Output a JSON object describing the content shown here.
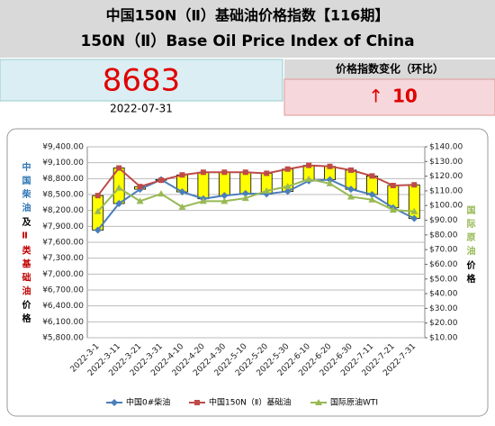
{
  "header": {
    "title": "中国150N（Ⅱ）基础油价格指数【116期】",
    "subtitle": "150N（Ⅱ）Base Oil Price Index of China"
  },
  "index": {
    "value": 8683,
    "date": "2022-07-31",
    "change_title": "价格指数变化（环比）",
    "change_arrow": "↑",
    "change": 10
  },
  "chart_data": {
    "type": "line",
    "categories": [
      "2022-3-1",
      "2022-3-11",
      "2022-3-21",
      "2022-3-31",
      "2022-4-10",
      "2022-4-20",
      "2022-4-30",
      "2022-5-10",
      "2022-5-20",
      "2022-5-30",
      "2022-6-10",
      "2022-6-20",
      "2022-6-30",
      "2022-7-11",
      "2022-7-21",
      "2022-7-31"
    ],
    "series": [
      {
        "name": "中国0#柴油",
        "color": "#4a7ebb",
        "marker": "diamond",
        "values": [
          7830,
          8330,
          8600,
          8780,
          8550,
          8420,
          8480,
          8520,
          8510,
          8560,
          8760,
          8780,
          8600,
          8500,
          8250,
          8050
        ]
      },
      {
        "name": "中国150N（Ⅱ）基础油",
        "color": "#be4b48",
        "marker": "square",
        "values": [
          8480,
          9000,
          8650,
          8770,
          8870,
          8920,
          8920,
          8920,
          8900,
          8980,
          9050,
          9030,
          8960,
          8850,
          8670,
          8683
        ]
      },
      {
        "name": "国际原油WTI",
        "color": "#98b954",
        "marker": "triangle",
        "axis": "y2",
        "values": [
          96,
          112,
          103,
          108,
          99,
          103,
          103,
          105,
          110,
          113,
          118,
          115,
          106,
          104,
          97,
          96
        ]
      }
    ],
    "updown_bar_color": "#ffff00",
    "ylim": [
      5800,
      9400
    ],
    "yticks": [
      {
        "value": 5800,
        "label": "¥5,800.00"
      },
      {
        "value": 6100,
        "label": "¥6,100.00"
      },
      {
        "value": 6400,
        "label": "¥6,400.00"
      },
      {
        "value": 6700,
        "label": "¥6,700.00"
      },
      {
        "value": 7000,
        "label": "¥7,000.00"
      },
      {
        "value": 7300,
        "label": "¥7,300.00"
      },
      {
        "value": 7600,
        "label": "¥7,600.00"
      },
      {
        "value": 7900,
        "label": "¥7,900.00"
      },
      {
        "value": 8200,
        "label": "¥8,200.00"
      },
      {
        "value": 8500,
        "label": "¥8,500.00"
      },
      {
        "value": 8800,
        "label": "¥8,800.00"
      },
      {
        "value": 9100,
        "label": "¥9,100.00"
      },
      {
        "value": 9400,
        "label": "¥9,400.00"
      }
    ],
    "y2lim": [
      10,
      140
    ],
    "y2ticks": [
      {
        "value": 10,
        "label": "$10.00"
      },
      {
        "value": 20,
        "label": "$20.00"
      },
      {
        "value": 30,
        "label": "$30.00"
      },
      {
        "value": 40,
        "label": "$40.00"
      },
      {
        "value": 50,
        "label": "$50.00"
      },
      {
        "value": 60,
        "label": "$60.00"
      },
      {
        "value": 70,
        "label": "$70.00"
      },
      {
        "value": 80,
        "label": "$80.00"
      },
      {
        "value": 90,
        "label": "$90.00"
      },
      {
        "value": 100,
        "label": "$100.00"
      },
      {
        "value": 110,
        "label": "$110.00"
      },
      {
        "value": 120,
        "label": "$120.00"
      },
      {
        "value": 130,
        "label": "$130.00"
      },
      {
        "value": 140,
        "label": "$140.00"
      }
    ],
    "grid": true,
    "y_label_parts": [
      {
        "text": "中国柴油",
        "color": "#2e75b6"
      },
      {
        "text": "及",
        "color": "#000000"
      },
      {
        "text": "Ⅱ类基础油",
        "color": "#c00000"
      },
      {
        "text": "价格",
        "color": "#000000"
      }
    ],
    "y2_label_parts": [
      {
        "text": "国际原油",
        "color": "#98b954"
      },
      {
        "text": "价格",
        "color": "#000000"
      }
    ]
  }
}
